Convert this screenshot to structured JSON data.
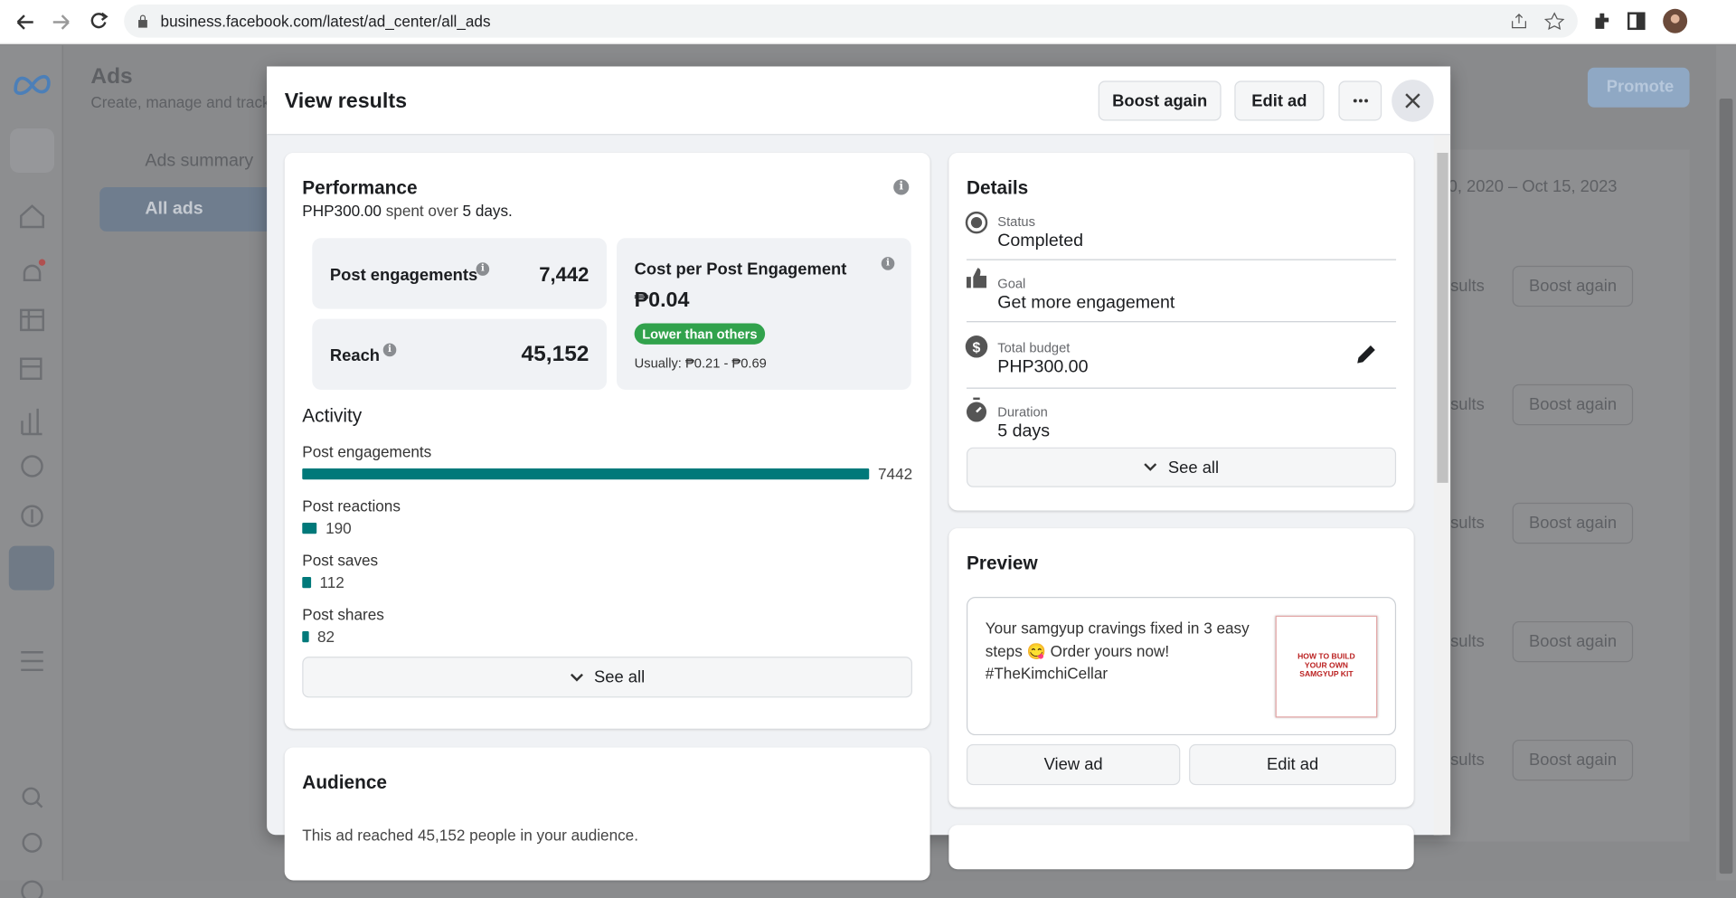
{
  "browser": {
    "url": "business.facebook.com/latest/ad_center/all_ads"
  },
  "background": {
    "title": "Ads",
    "subtitle": "Create, manage and track",
    "nav": [
      "Ads summary",
      "All ads"
    ],
    "promote": "Promote",
    "date_range": "0, 2020 – Oct 15, 2023",
    "rows": [
      {
        "results": "sults",
        "action": "Boost again"
      },
      {
        "results": "sults",
        "action": "Boost again"
      },
      {
        "results": "sults",
        "action": "Boost again"
      },
      {
        "results": "sults",
        "action": "Boost again"
      },
      {
        "results": "sults",
        "action": "Boost again"
      }
    ]
  },
  "modal": {
    "title": "View results",
    "actions": [
      "Boost again",
      "Edit ad"
    ],
    "performance": {
      "title": "Performance",
      "spend": "PHP300.00",
      "spend_text": "spent over",
      "duration": "5 days.",
      "metrics": [
        {
          "label": "Post engagements",
          "value": "7,442"
        },
        {
          "label": "Reach",
          "value": "45,152"
        }
      ],
      "cost": {
        "label": "Cost per Post Engagement",
        "value": "₱0.04",
        "badge": "Lower than others",
        "usual": "Usually: ₱0.21 - ₱0.69"
      },
      "activity": {
        "title": "Activity",
        "items": [
          {
            "label": "Post engagements",
            "value": 7442
          },
          {
            "label": "Post reactions",
            "value": 190
          },
          {
            "label": "Post saves",
            "value": 112
          },
          {
            "label": "Post shares",
            "value": 82
          }
        ],
        "see_all": "See all"
      }
    },
    "details": {
      "title": "Details",
      "items": [
        {
          "label": "Status",
          "value": "Completed"
        },
        {
          "label": "Goal",
          "value": "Get more engagement"
        },
        {
          "label": "Total budget",
          "value": "PHP300.00"
        },
        {
          "label": "Duration",
          "value": "5 days"
        }
      ],
      "see_all": "See all"
    },
    "preview": {
      "title": "Preview",
      "text": "Your samgyup cravings fixed in 3 easy steps 😋 Order yours now! #TheKimchiCellar",
      "image_text": "HOW TO BUILD YOUR OWN SAMGYUP KIT",
      "buttons": [
        "View ad",
        "Edit ad"
      ]
    },
    "audience": {
      "title": "Audience",
      "text": "This ad reached 45,152 people in your audience."
    }
  }
}
